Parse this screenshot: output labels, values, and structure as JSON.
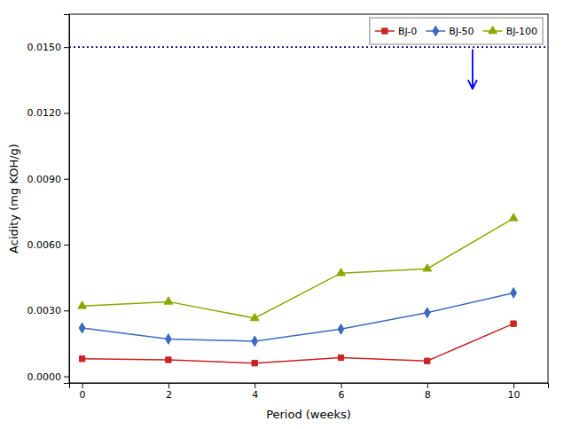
{
  "chart_data": {
    "type": "line",
    "x_label": "Period (weeks)",
    "y_label": "Acidity (mg KOH/g)",
    "x": [
      0,
      2,
      4,
      6,
      8,
      10
    ],
    "series": [
      {
        "name": "BJ-0",
        "color": "#cc2222",
        "marker": "square",
        "values": [
          0.0008,
          0.00075,
          0.0006,
          0.00085,
          0.0007,
          0.0024
        ]
      },
      {
        "name": "BJ-50",
        "color": "#3a6bbf",
        "marker": "diamond",
        "values": [
          0.0022,
          0.0017,
          0.0016,
          0.00215,
          0.0029,
          0.0038
        ]
      },
      {
        "name": "BJ-100",
        "color": "#88aa00",
        "marker": "triangle",
        "values": [
          0.0032,
          0.0034,
          0.00265,
          0.0047,
          0.0049,
          0.0072
        ]
      }
    ],
    "hline": {
      "y": 0.015,
      "color": "navy",
      "line_style": "dotted"
    },
    "arrow": {
      "x": 9.05,
      "y_start": 0.0149,
      "y_end": 0.0131,
      "color": "blue"
    },
    "xlim": [
      -0.3,
      10.8
    ],
    "ylim": [
      -0.0003,
      0.0165
    ],
    "xticks": [
      0,
      2,
      4,
      6,
      8,
      10
    ],
    "yticks": [
      {
        "value": 0.0,
        "label": "0.0000"
      },
      {
        "value": 0.003,
        "label": "0.0030"
      },
      {
        "value": 0.006,
        "label": "0.0060"
      },
      {
        "value": 0.009,
        "label": "0.0090"
      },
      {
        "value": 0.012,
        "label": "0.0120"
      },
      {
        "value": 0.015,
        "label": "0.0150"
      }
    ],
    "grid": false,
    "legend": "upper right"
  }
}
